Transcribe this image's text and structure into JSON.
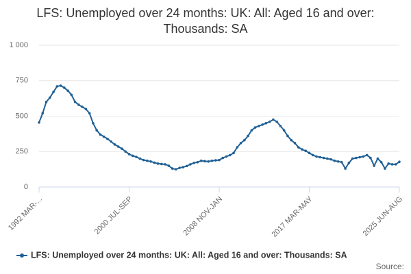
{
  "chart_data": {
    "type": "line",
    "title": "LFS: Unemployed over 24 months: UK: All: Aged 16 and over: Thousands: SA",
    "source": "Source:",
    "categories": [
      "1992 MAR-...",
      null,
      null,
      null,
      null,
      null,
      null,
      null,
      null,
      null,
      null,
      null,
      null,
      null,
      null,
      null,
      null,
      null,
      null,
      null,
      null,
      null,
      null,
      null,
      null,
      "2000 JUL-SEP",
      null,
      null,
      null,
      null,
      null,
      null,
      null,
      null,
      null,
      null,
      null,
      null,
      null,
      null,
      null,
      null,
      null,
      null,
      null,
      null,
      null,
      null,
      null,
      null,
      "2008 NOV-JAN",
      null,
      null,
      null,
      null,
      null,
      null,
      null,
      null,
      null,
      null,
      null,
      null,
      null,
      null,
      null,
      null,
      null,
      null,
      null,
      null,
      null,
      null,
      null,
      null,
      "2017 MAR-MAY",
      null,
      null,
      null,
      null,
      null,
      null,
      null,
      null,
      null,
      null,
      null,
      null,
      null,
      null,
      null,
      null,
      null,
      null,
      null,
      null,
      null,
      null,
      null,
      null,
      "2025 JUN-AUG"
    ],
    "series": [
      {
        "name": "LFS: Unemployed over 24 months: UK: All: Aged 16 and over: Thousands: SA",
        "color": "#206095",
        "values": [
          455,
          520,
          600,
          630,
          670,
          710,
          715,
          700,
          680,
          650,
          600,
          580,
          565,
          550,
          520,
          450,
          400,
          370,
          355,
          340,
          320,
          300,
          285,
          270,
          250,
          232,
          220,
          212,
          200,
          190,
          185,
          180,
          172,
          165,
          162,
          160,
          150,
          130,
          125,
          135,
          140,
          148,
          160,
          170,
          175,
          185,
          182,
          180,
          185,
          188,
          190,
          205,
          215,
          225,
          240,
          280,
          310,
          330,
          360,
          400,
          420,
          430,
          440,
          450,
          460,
          475,
          460,
          430,
          400,
          360,
          330,
          310,
          280,
          265,
          255,
          240,
          225,
          215,
          210,
          205,
          200,
          195,
          185,
          180,
          175,
          130,
          170,
          200,
          205,
          210,
          215,
          225,
          205,
          150,
          200,
          175,
          130,
          165,
          160,
          160,
          178
        ]
      }
    ],
    "ylim": [
      0,
      1000
    ],
    "yticks": [
      0,
      250,
      500,
      750,
      {
        "value": 1000,
        "label": "1 000"
      }
    ],
    "grid": true,
    "legend": "bottom"
  }
}
